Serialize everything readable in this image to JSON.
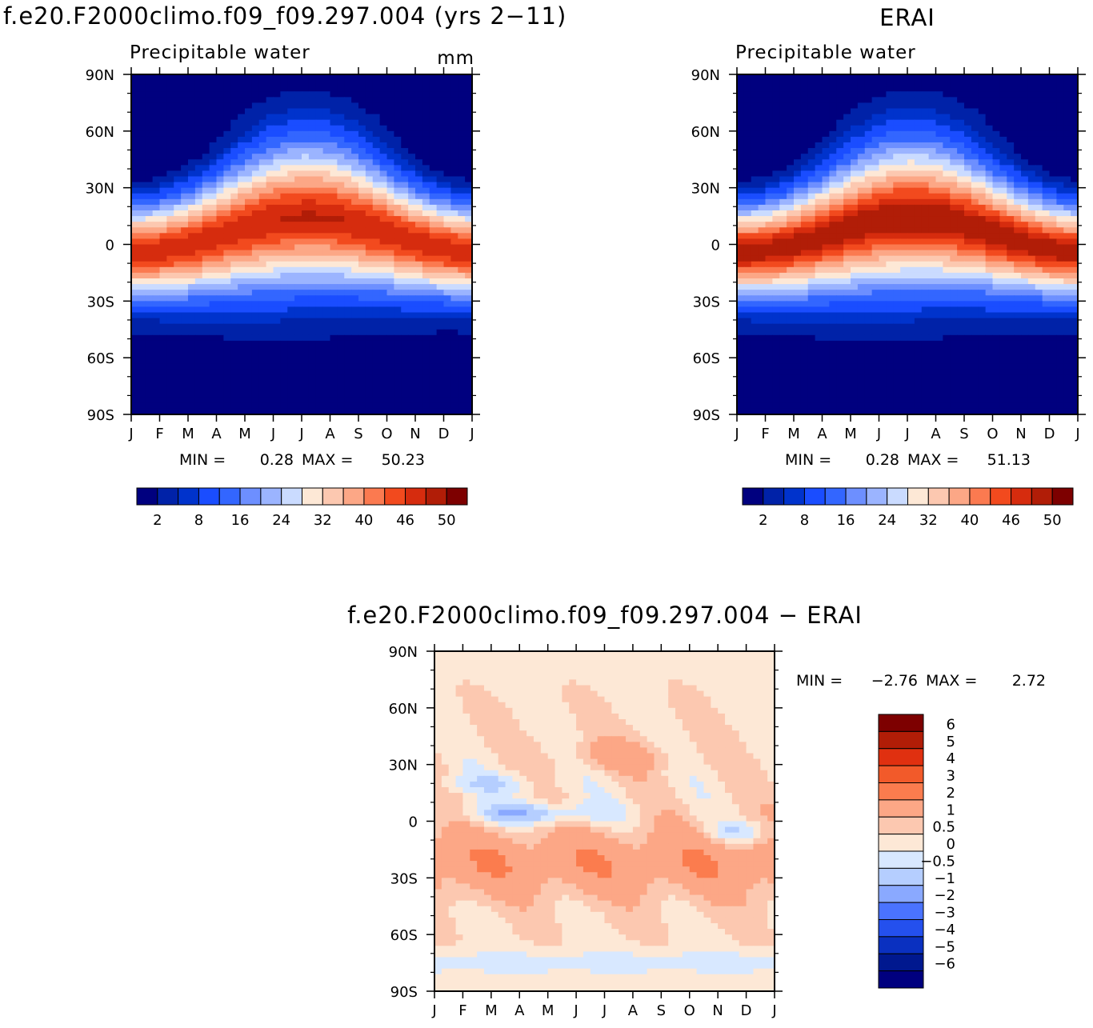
{
  "chart_data": [
    {
      "type": "heatmap",
      "title": "f.e20.F2000climo.f09_f09.297.004 (yrs 2−11)",
      "subtitle": "Precipitable water",
      "units": "mm",
      "x_ticks": [
        "J",
        "F",
        "M",
        "A",
        "M",
        "J",
        "J",
        "A",
        "S",
        "O",
        "N",
        "D",
        "J"
      ],
      "y_ticks": [
        "90N",
        "60N",
        "30N",
        "0",
        "30S",
        "60S",
        "90S"
      ],
      "min_label": "MIN =",
      "min_value": "0.28",
      "max_label": "MAX =",
      "max_value": "50.23",
      "colorbar_labels": [
        "2",
        "8",
        "16",
        "24",
        "32",
        "40",
        "46",
        "50"
      ],
      "colorbar_colors": [
        "#00007f",
        "#0022a8",
        "#0033cc",
        "#1a4dff",
        "#3366ff",
        "#6d8fff",
        "#9bb4ff",
        "#cadbff",
        "#fde8d6",
        "#fcc8b0",
        "#fca786",
        "#fb7a50",
        "#f24a1e",
        "#d62c0e",
        "#b11d07",
        "#7d0000"
      ],
      "equator_max": 50.23,
      "ylim": [
        -90,
        90
      ],
      "grid": false
    },
    {
      "type": "heatmap",
      "title": "ERAI",
      "subtitle": "Precipitable water",
      "x_ticks": [
        "J",
        "F",
        "M",
        "A",
        "M",
        "J",
        "J",
        "A",
        "S",
        "O",
        "N",
        "D",
        "J"
      ],
      "y_ticks": [
        "90N",
        "60N",
        "30N",
        "0",
        "30S",
        "60S",
        "90S"
      ],
      "min_label": "MIN =",
      "min_value": "0.28",
      "max_label": "MAX =",
      "max_value": "51.13",
      "colorbar_labels": [
        "2",
        "8",
        "16",
        "24",
        "32",
        "40",
        "46",
        "50"
      ],
      "colorbar_colors": [
        "#00007f",
        "#0022a8",
        "#0033cc",
        "#1a4dff",
        "#3366ff",
        "#6d8fff",
        "#9bb4ff",
        "#cadbff",
        "#fde8d6",
        "#fcc8b0",
        "#fca786",
        "#fb7a50",
        "#f24a1e",
        "#d62c0e",
        "#b11d07",
        "#7d0000"
      ],
      "equator_max": 51.13,
      "ylim": [
        -90,
        90
      ],
      "grid": false
    },
    {
      "type": "heatmap",
      "title": "f.e20.F2000climo.f09_f09.297.004 − ERAI",
      "x_ticks": [
        "J",
        "F",
        "M",
        "A",
        "M",
        "J",
        "J",
        "A",
        "S",
        "O",
        "N",
        "D",
        "J"
      ],
      "y_ticks": [
        "90N",
        "60N",
        "30N",
        "0",
        "30S",
        "60S",
        "90S"
      ],
      "min_label": "MIN =",
      "min_value": "−2.76",
      "max_label": "MAX =",
      "max_value": "2.72",
      "colorbar_labels": [
        "6",
        "5",
        "4",
        "3",
        "2",
        "1",
        "0.5",
        "0",
        "−0.5",
        "−1",
        "−2",
        "−3",
        "−4",
        "−5",
        "−6"
      ],
      "colorbar_colors": [
        "#7d0000",
        "#b11d07",
        "#e03010",
        "#f25a2a",
        "#fb7c4e",
        "#fca786",
        "#fcc8b0",
        "#fde8d6",
        "#d8e8ff",
        "#b5ceff",
        "#8aa9ff",
        "#4a73ff",
        "#2450ee",
        "#0a30c0",
        "#00188f",
        "#00007f"
      ],
      "ylim": [
        -90,
        90
      ],
      "grid": false
    }
  ]
}
